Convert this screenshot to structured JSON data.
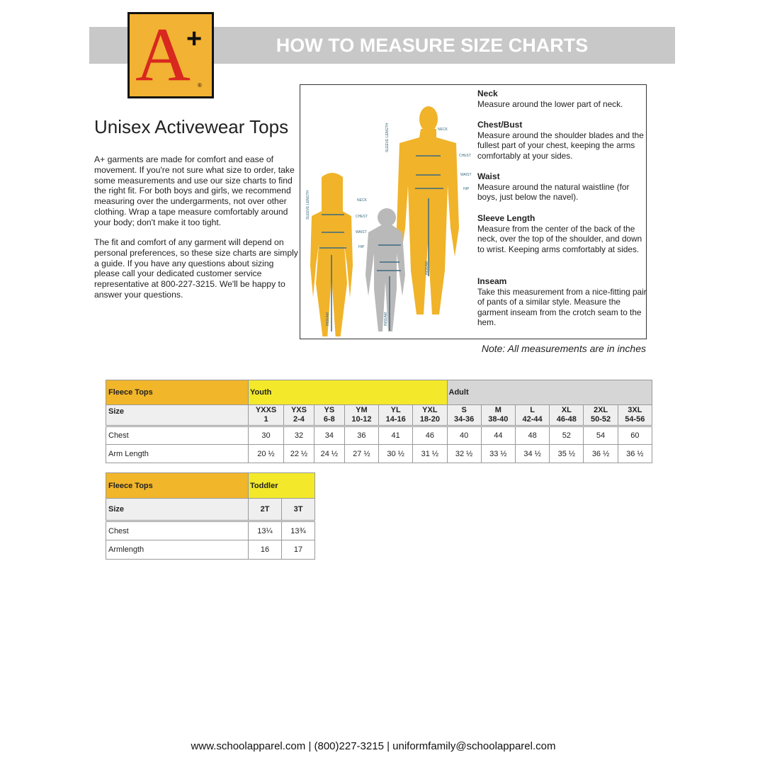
{
  "header": {
    "title": "HOW TO MEASURE SIZE CHARTS"
  },
  "logo": {
    "text": "A+",
    "colors": {
      "background": "#f2b233",
      "letter": "#d8281f"
    }
  },
  "page_title": "Unisex Activewear Tops",
  "intro": [
    "A+ garments are made for comfort and ease of movement. If you're not sure what size to order, take some measurements and use our size charts to find the right fit. For both boys and girls, we recommend measuring over the undergarments, not over other clothing. Wrap a tape measure comfortably around your body; don't make it too tight.",
    "The fit and comfort of any garment will depend on personal preferences, so these size charts are simply a guide. If you have any questions about sizing please call your dedicated customer service representative at 800-227-3215. We'll be happy to answer your questions."
  ],
  "diagram": {
    "labels": {
      "neck": "NECK",
      "chest": "CHEST",
      "waist": "WAIST",
      "hip": "HIP",
      "sleeve": "SLEEVE LENGTH",
      "inseam": "INSEAM"
    },
    "definitions": [
      {
        "term": "Neck",
        "text": "Measure around the lower part of neck."
      },
      {
        "term": "Chest/Bust",
        "text": "Measure around the shoulder blades and the fullest part of your chest, keeping the arms comfortably at your sides."
      },
      {
        "term": "Waist",
        "text": "Measure around the natural waistline (for boys, just below the navel)."
      },
      {
        "term": "Sleeve Length",
        "text": "Measure from the center of the back of the neck, over the top of the shoulder, and down to wrist. Keeping arms comfortably at sides."
      },
      {
        "term": "Inseam",
        "text": "Take this measurement from a nice-fitting pair of pants of a similar style. Measure the garment inseam from the crotch seam to the hem."
      }
    ]
  },
  "note": "Note: All measurements are in inches",
  "table1": {
    "title": "Fleece Tops",
    "group_youth": "Youth",
    "group_adult": "Adult",
    "size_label": "Size",
    "sizes": [
      [
        "YXXS",
        "1"
      ],
      [
        "YXS",
        "2-4"
      ],
      [
        "YS",
        "6-8"
      ],
      [
        "YM",
        "10-12"
      ],
      [
        "YL",
        "14-16"
      ],
      [
        "YXL",
        "18-20"
      ],
      [
        "S",
        "34-36"
      ],
      [
        "M",
        "38-40"
      ],
      [
        "L",
        "42-44"
      ],
      [
        "XL",
        "46-48"
      ],
      [
        "2XL",
        "50-52"
      ],
      [
        "3XL",
        "54-56"
      ]
    ],
    "rows": [
      {
        "label": "Chest",
        "values": [
          "30",
          "32",
          "34",
          "36",
          "41",
          "46",
          "40",
          "44",
          "48",
          "52",
          "54",
          "60"
        ]
      },
      {
        "label": "Arm Length",
        "values": [
          "20 ½",
          "22 ½",
          "24 ½",
          "27 ½",
          "30 ½",
          "31 ½",
          "32 ½",
          "33 ½",
          "34 ½",
          "35 ½",
          "36 ½",
          "36 ½"
        ]
      }
    ]
  },
  "table2": {
    "title": "Fleece Tops",
    "group": "Toddler",
    "size_label": "Size",
    "sizes": [
      "2T",
      "3T"
    ],
    "rows": [
      {
        "label": "Chest",
        "values": [
          "13¼",
          "13¾"
        ]
      },
      {
        "label": "Armlength",
        "values": [
          "16",
          "17"
        ]
      }
    ]
  },
  "footer": "www.schoolapparel.com | (800)227-3215 | uniformfamily@schoolapparel.com"
}
